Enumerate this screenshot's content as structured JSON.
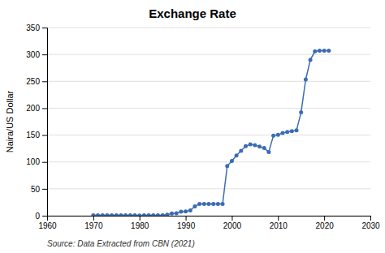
{
  "chart_data": {
    "type": "line",
    "title": "Exchange Rate",
    "ylabel": "Naira/US Dollar",
    "annotations": [
      "Source: Data Extracted from CBN (2021)"
    ],
    "x": [
      1970,
      1971,
      1972,
      1973,
      1974,
      1975,
      1976,
      1977,
      1978,
      1979,
      1980,
      1981,
      1982,
      1983,
      1984,
      1985,
      1986,
      1987,
      1988,
      1989,
      1990,
      1991,
      1992,
      1993,
      1994,
      1995,
      1996,
      1997,
      1998,
      1999,
      2000,
      2001,
      2002,
      2003,
      2004,
      2005,
      2006,
      2007,
      2008,
      2009,
      2010,
      2011,
      2012,
      2013,
      2014,
      2015,
      2016,
      2017,
      2018,
      2019,
      2020,
      2021
    ],
    "values": [
      0.71,
      0.69,
      0.66,
      0.66,
      0.63,
      0.62,
      0.63,
      0.65,
      0.7,
      0.6,
      0.55,
      0.61,
      0.67,
      0.72,
      0.76,
      0.89,
      1.75,
      4.02,
      4.54,
      7.36,
      8.04,
      9.91,
      17.3,
      22.05,
      21.88,
      21.9,
      21.88,
      21.89,
      21.89,
      92.34,
      101.7,
      111.9,
      120.6,
      129.3,
      132.9,
      131.3,
      128.7,
      125.8,
      118.6,
      148.9,
      150.3,
      153.9,
      155.8,
      157.3,
      158.6,
      192.4,
      253.5,
      290.0,
      305.8,
      306.9,
      306.9,
      307.0
    ],
    "color": "#3B6DB3",
    "marker": "circle",
    "xlim": [
      1960,
      2030
    ],
    "ylim": [
      0,
      350
    ],
    "xticks": [
      1960,
      1970,
      1980,
      1990,
      2000,
      2010,
      2020,
      2030
    ],
    "yticks": [
      0,
      50,
      100,
      150,
      200,
      250,
      300,
      350
    ],
    "grid": true
  }
}
